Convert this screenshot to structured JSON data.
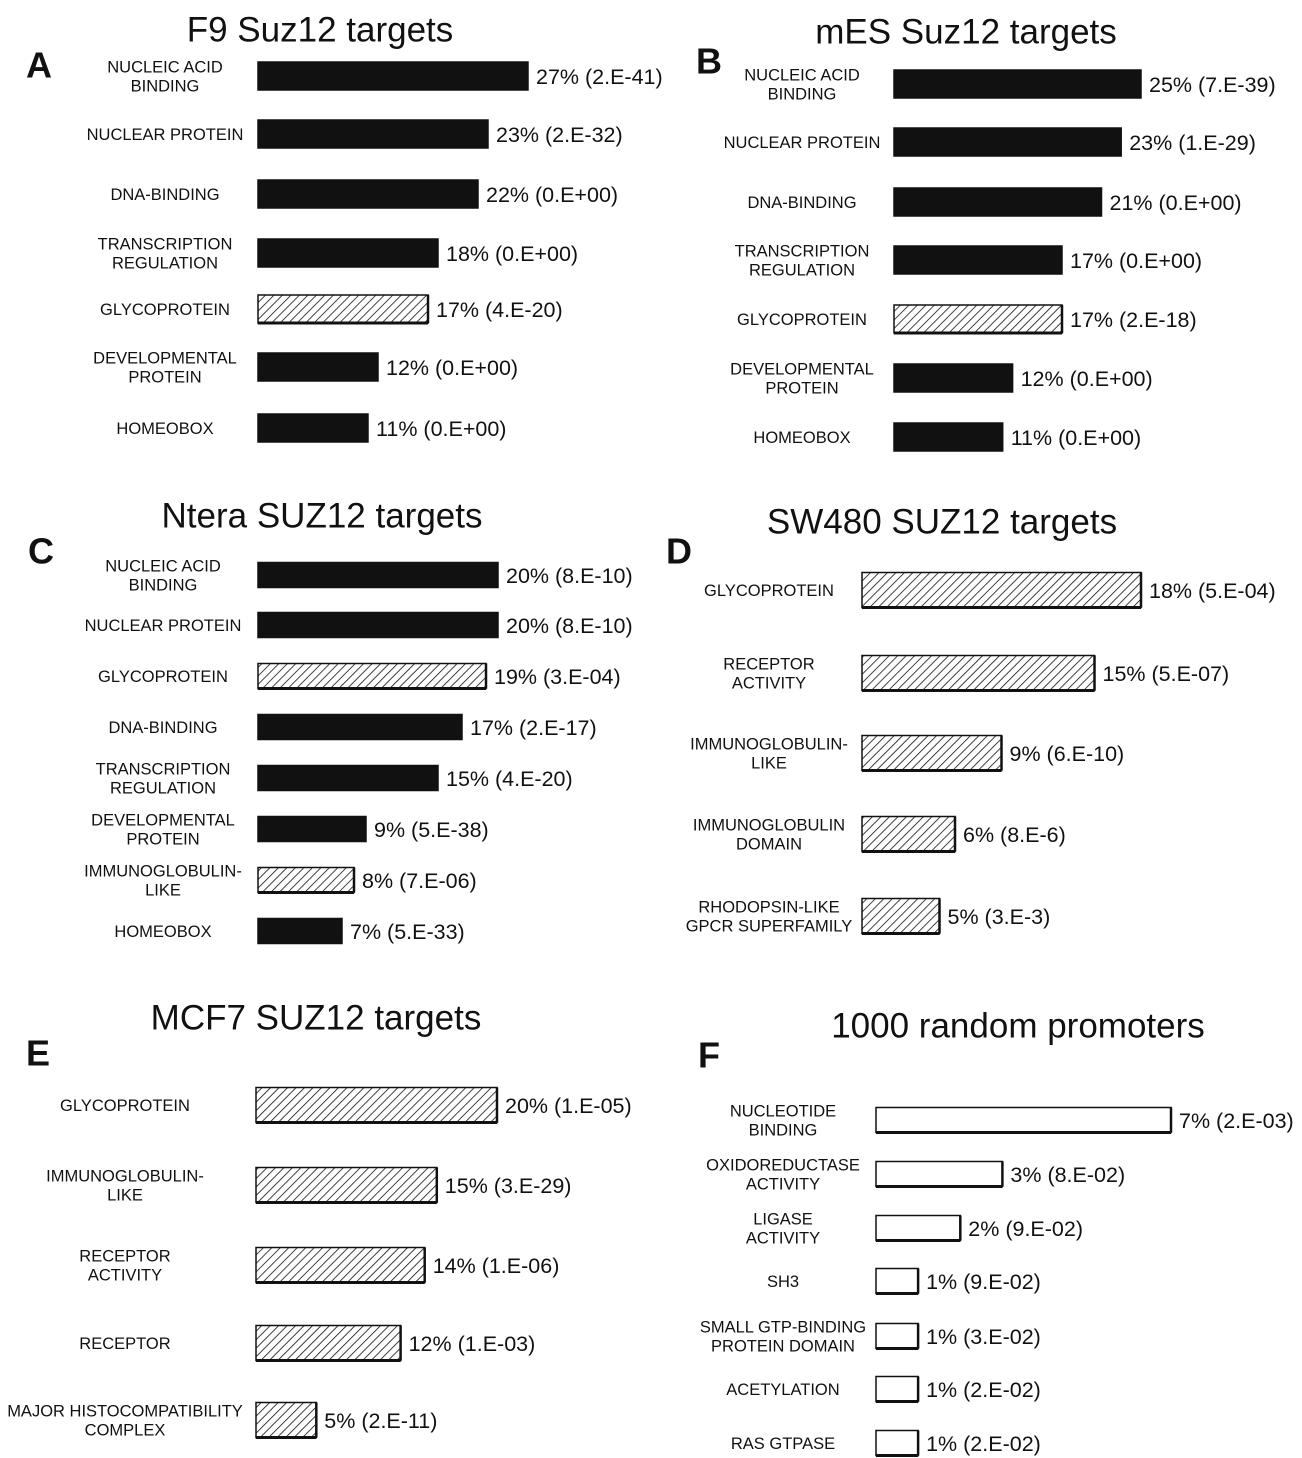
{
  "chart_data": [
    {
      "panel": "A",
      "type": "bar",
      "orientation": "horizontal",
      "title": "F9 Suz12 targets",
      "categories": [
        "NUCLEIC ACID\nBINDING",
        "NUCLEAR PROTEIN",
        "DNA-BINDING",
        "TRANSCRIPTION\nREGULATION",
        "GLYCOPROTEIN",
        "DEVELOPMENTAL\nPROTEIN",
        "HOMEOBOX"
      ],
      "values": [
        27,
        23,
        22,
        18,
        17,
        12,
        11
      ],
      "labels": [
        "27% (2.E-41)",
        "23% (2.E-32)",
        "22% (0.E+00)",
        "18% (0.E+00)",
        "17% (4.E-20)",
        "12% (0.E+00)",
        "11% (0.E+00)"
      ],
      "fills": [
        "solid",
        "solid",
        "solid",
        "solid",
        "hatch",
        "solid",
        "solid"
      ],
      "xlim": [
        0,
        27
      ]
    },
    {
      "panel": "B",
      "type": "bar",
      "orientation": "horizontal",
      "title": "mES Suz12 targets",
      "categories": [
        "NUCLEIC ACID\nBINDING",
        "NUCLEAR PROTEIN",
        "DNA-BINDING",
        "TRANSCRIPTION\nREGULATION",
        "GLYCOPROTEIN",
        "DEVELOPMENTAL\nPROTEIN",
        "HOMEOBOX"
      ],
      "values": [
        25,
        23,
        21,
        17,
        17,
        12,
        11
      ],
      "labels": [
        "25% (7.E-39)",
        "23% (1.E-29)",
        "21% (0.E+00)",
        "17% (0.E+00)",
        "17% (2.E-18)",
        "12% (0.E+00)",
        "11% (0.E+00)"
      ],
      "fills": [
        "solid",
        "solid",
        "solid",
        "solid",
        "hatch",
        "solid",
        "solid"
      ],
      "xlim": [
        0,
        25
      ]
    },
    {
      "panel": "C",
      "type": "bar",
      "orientation": "horizontal",
      "title": "Ntera SUZ12 targets",
      "categories": [
        "NUCLEIC ACID\nBINDING",
        "NUCLEAR PROTEIN",
        "GLYCOPROTEIN",
        "DNA-BINDING",
        "TRANSCRIPTION\nREGULATION",
        "DEVELOPMENTAL\nPROTEIN",
        "IMMUNOGLOBULIN-\nLIKE",
        "HOMEOBOX"
      ],
      "values": [
        20,
        20,
        19,
        17,
        15,
        9,
        8,
        7
      ],
      "labels": [
        "20% (8.E-10)",
        "20% (8.E-10)",
        "19% (3.E-04)",
        "17% (2.E-17)",
        "15% (4.E-20)",
        "9% (5.E-38)",
        "8% (7.E-06)",
        "7% (5.E-33)"
      ],
      "fills": [
        "solid",
        "solid",
        "hatch",
        "solid",
        "solid",
        "solid",
        "hatch",
        "solid"
      ],
      "xlim": [
        0,
        20
      ]
    },
    {
      "panel": "D",
      "type": "bar",
      "orientation": "horizontal",
      "title": "SW480 SUZ12 targets",
      "categories": [
        "GLYCOPROTEIN",
        "RECEPTOR\nACTIVITY",
        "IMMUNOGLOBULIN-\nLIKE",
        "IMMUNOGLOBULIN\nDOMAIN",
        "RHODOPSIN-LIKE\nGPCR SUPERFAMILY"
      ],
      "values": [
        18,
        15,
        9,
        6,
        5
      ],
      "labels": [
        "18% (5.E-04)",
        "15% (5.E-07)",
        "9% (6.E-10)",
        "6% (8.E-6)",
        "5% (3.E-3)"
      ],
      "fills": [
        "hatch",
        "hatch",
        "hatch",
        "hatch",
        "hatch"
      ],
      "xlim": [
        0,
        18
      ]
    },
    {
      "panel": "E",
      "type": "bar",
      "orientation": "horizontal",
      "title": "MCF7 SUZ12 targets",
      "categories": [
        "GLYCOPROTEIN",
        "IMMUNOGLOBULIN-\nLIKE",
        "RECEPTOR\nACTIVITY",
        "RECEPTOR",
        "MAJOR HISTOCOMPATIBILITY\nCOMPLEX"
      ],
      "values": [
        20,
        15,
        14,
        12,
        5
      ],
      "labels": [
        "20% (1.E-05)",
        "15% (3.E-29)",
        "14% (1.E-06)",
        "12% (1.E-03)",
        "5% (2.E-11)"
      ],
      "fills": [
        "hatch",
        "hatch",
        "hatch",
        "hatch",
        "hatch"
      ],
      "xlim": [
        0,
        20
      ]
    },
    {
      "panel": "F",
      "type": "bar",
      "orientation": "horizontal",
      "title": "1000 random promoters",
      "categories": [
        "NUCLEOTIDE\nBINDING",
        "OXIDOREDUCTASE\nACTIVITY",
        "LIGASE\nACTIVITY",
        "SH3",
        "SMALL GTP-BINDING\nPROTEIN DOMAIN",
        "ACETYLATION",
        "RAS GTPASE"
      ],
      "values": [
        7,
        3,
        2,
        1,
        1,
        1,
        1
      ],
      "labels": [
        "7% (2.E-03)",
        "3% (8.E-02)",
        "2% (9.E-02)",
        "1% (9.E-02)",
        "1% (3.E-02)",
        "1% (2.E-02)",
        "1% (2.E-02)"
      ],
      "fills": [
        "open",
        "open",
        "open",
        "open",
        "open",
        "open",
        "open"
      ],
      "xlim": [
        0,
        7
      ]
    }
  ]
}
